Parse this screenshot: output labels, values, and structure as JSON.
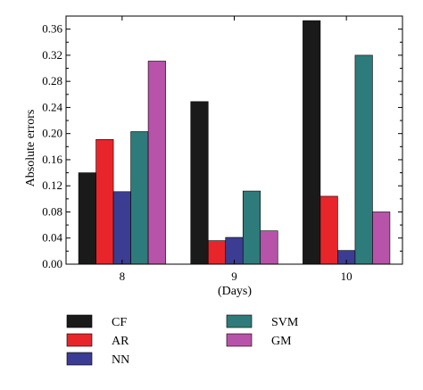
{
  "chart_data": {
    "type": "bar",
    "xlabel": "(Days)",
    "ylabel": "Absolute errors",
    "categories": [
      "8",
      "9",
      "10"
    ],
    "ylim": [
      0,
      0.38
    ],
    "yticks": [
      "0.00",
      "0.04",
      "0.08",
      "0.12",
      "0.16",
      "0.20",
      "0.24",
      "0.28",
      "0.32",
      "0.36"
    ],
    "grid": false,
    "legend_position": "bottom",
    "series": [
      {
        "name": "CF",
        "color": "#1a1a1a",
        "values": [
          0.14,
          0.249,
          0.373
        ]
      },
      {
        "name": "AR",
        "color": "#e8262a",
        "values": [
          0.191,
          0.036,
          0.104
        ]
      },
      {
        "name": "NN",
        "color": "#3b3d92",
        "values": [
          0.111,
          0.041,
          0.021
        ]
      },
      {
        "name": "SVM",
        "color": "#2e7b7b",
        "values": [
          0.203,
          0.112,
          0.32
        ]
      },
      {
        "name": "GM",
        "color": "#b853aa",
        "values": [
          0.311,
          0.051,
          0.08
        ]
      }
    ]
  }
}
